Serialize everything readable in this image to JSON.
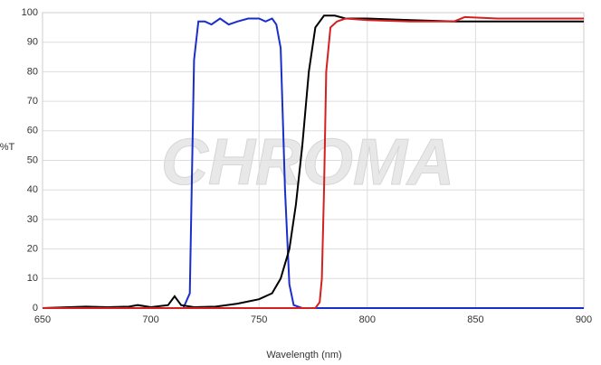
{
  "chart_data": {
    "type": "line",
    "watermark": "CHROMA",
    "x_label": "Wavelength (nm)",
    "y_label": "%T",
    "xlim": [
      650,
      900
    ],
    "xticks": [
      650,
      700,
      750,
      800,
      850,
      900
    ],
    "ylim": [
      0,
      100
    ],
    "yticks": [
      0,
      10,
      20,
      30,
      40,
      50,
      60,
      70,
      80,
      90,
      100
    ],
    "grid": true,
    "series": [
      {
        "color": "#1a2ecc",
        "x": [
          650,
          715,
          718,
          720,
          722,
          725,
          728,
          732,
          736,
          740,
          745,
          750,
          753,
          756,
          758,
          760,
          762,
          764,
          766,
          770,
          900
        ],
        "values": [
          0,
          0,
          5,
          84,
          97,
          97,
          96,
          98,
          96,
          97,
          98,
          98,
          97,
          98,
          96,
          88,
          40,
          8,
          1,
          0,
          0
        ]
      },
      {
        "color": "#000000",
        "x": [
          650,
          670,
          680,
          690,
          694,
          700,
          708,
          711,
          714,
          720,
          730,
          740,
          750,
          756,
          760,
          764,
          767,
          770,
          773,
          776,
          780,
          785,
          790,
          800,
          820,
          840,
          860,
          880,
          900
        ],
        "values": [
          0,
          0.5,
          0.3,
          0.5,
          1,
          0.3,
          1,
          4,
          1,
          0.3,
          0.5,
          1.5,
          3,
          5,
          10,
          20,
          35,
          55,
          80,
          95,
          99,
          99,
          98,
          98,
          97.5,
          97,
          97,
          97,
          97
        ]
      },
      {
        "color": "#d42020",
        "x": [
          650,
          776,
          778,
          779,
          780,
          781,
          783,
          786,
          790,
          800,
          820,
          840,
          845,
          860,
          880,
          900
        ],
        "values": [
          0,
          0,
          2,
          10,
          40,
          80,
          95,
          97,
          98,
          97.5,
          97,
          97,
          98.5,
          98,
          98,
          98
        ]
      }
    ]
  }
}
